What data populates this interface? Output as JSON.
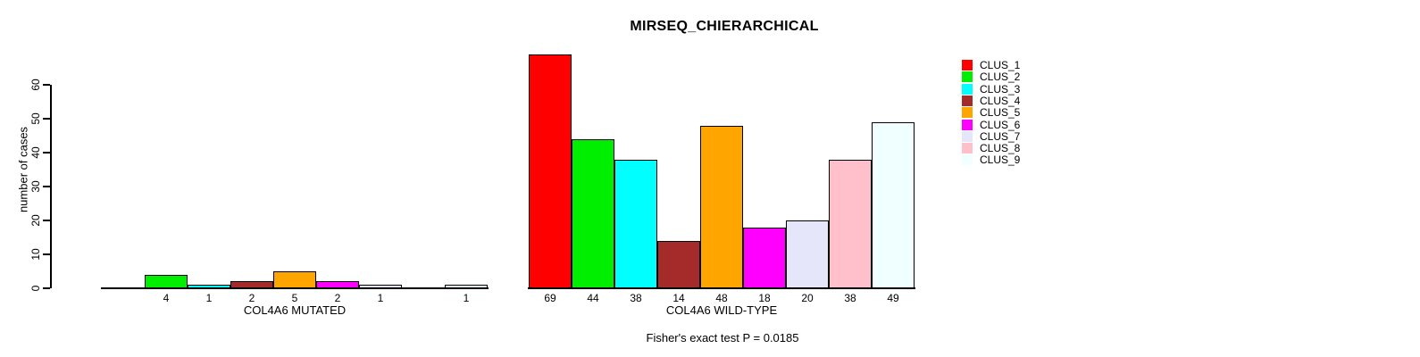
{
  "chart_data": {
    "type": "bar",
    "title": "MIRSEQ_CHIERARCHICAL",
    "ylabel": "number of cases",
    "footnote": "Fisher's exact test P = 0.0185",
    "ylim": [
      0,
      60
    ],
    "yticks": [
      0,
      10,
      20,
      30,
      40,
      50,
      60
    ],
    "grid": false,
    "bar_value_labels_shown": true,
    "zero_bars_hidden": true,
    "legend": {
      "position": "right",
      "entries": [
        {
          "label": "CLUS_1",
          "color": "#ff0000"
        },
        {
          "label": "CLUS_2",
          "color": "#00ee00"
        },
        {
          "label": "CLUS_3",
          "color": "#00ffff"
        },
        {
          "label": "CLUS_4",
          "color": "#a52a2a"
        },
        {
          "label": "CLUS_5",
          "color": "#ffa500"
        },
        {
          "label": "CLUS_6",
          "color": "#ff00ff"
        },
        {
          "label": "CLUS_7",
          "color": "#e6e6fa"
        },
        {
          "label": "CLUS_8",
          "color": "#ffc0cb"
        },
        {
          "label": "CLUS_9",
          "color": "#f0ffff"
        }
      ]
    },
    "groups": [
      {
        "label": "COL4A6 MUTATED",
        "values": [
          0,
          4,
          1,
          2,
          5,
          2,
          1,
          0,
          1
        ]
      },
      {
        "label": "COL4A6 WILD-TYPE",
        "values": [
          69,
          44,
          38,
          14,
          48,
          18,
          20,
          38,
          49
        ]
      }
    ]
  }
}
